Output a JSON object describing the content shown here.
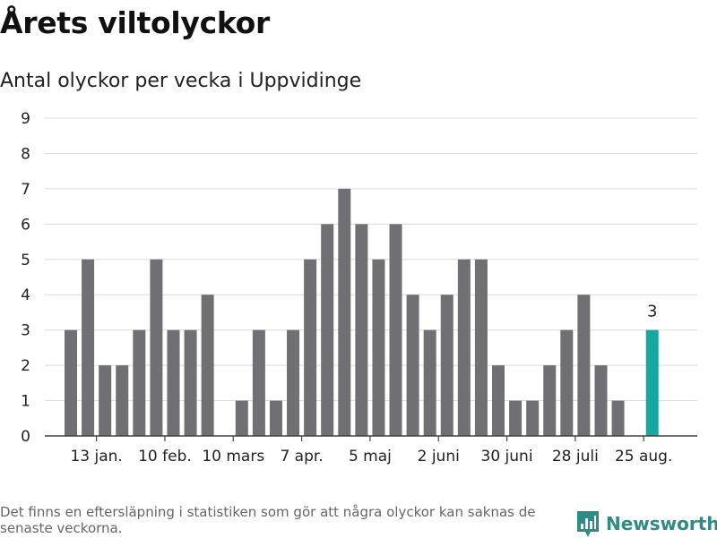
{
  "title": "Årets viltolyckor",
  "subtitle": "Antal olyckor per vecka i Uppvidinge",
  "footnote": "Det finns en eftersläpning i statistiken som gör att några olyckor kan saknas de senaste veckorna.",
  "brand": {
    "name": "Newsworthy",
    "icon": "newsworthy-logo-icon"
  },
  "colors": {
    "bar": "#707074",
    "highlight": "#14a89e",
    "grid": "#dcdcdc",
    "axis": "#444444",
    "brand": "#2e8b86"
  },
  "chart_data": {
    "type": "bar",
    "values": [
      3,
      5,
      2,
      2,
      3,
      5,
      3,
      3,
      4,
      0,
      1,
      3,
      1,
      3,
      5,
      6,
      7,
      6,
      5,
      6,
      4,
      3,
      4,
      5,
      5,
      2,
      1,
      1,
      2,
      3,
      4,
      2,
      1,
      0,
      3
    ],
    "ylim": [
      0,
      9
    ],
    "yticks": [
      "0",
      "1",
      "2",
      "3",
      "4",
      "5",
      "6",
      "7",
      "8",
      "9"
    ],
    "xticks": [
      {
        "index": 1,
        "label": "13 jan."
      },
      {
        "index": 5,
        "label": "10 feb."
      },
      {
        "index": 9,
        "label": "10 mars"
      },
      {
        "index": 13,
        "label": "7 apr."
      },
      {
        "index": 17,
        "label": "5 maj"
      },
      {
        "index": 21,
        "label": "2 juni"
      },
      {
        "index": 25,
        "label": "30 juni"
      },
      {
        "index": 29,
        "label": "28 juli"
      },
      {
        "index": 33,
        "label": "25 aug."
      }
    ],
    "highlight_index": 34,
    "highlight_label": "3",
    "grid": true
  }
}
